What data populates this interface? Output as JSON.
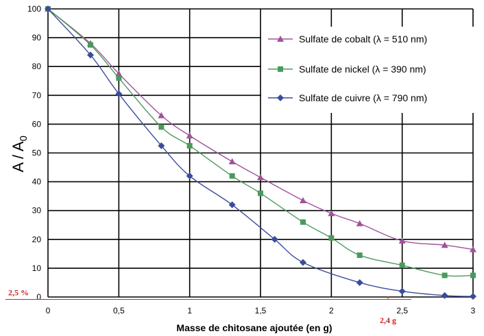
{
  "chart_data": {
    "type": "line",
    "title": "",
    "xlabel": "Masse de chitosane ajoutée (en g)",
    "ylabel": "A / A",
    "ylabel_subscript": "0",
    "xlim": [
      0,
      3
    ],
    "ylim": [
      0,
      100
    ],
    "x_ticks": [
      0,
      0.5,
      1,
      1.5,
      2,
      2.5,
      3
    ],
    "x_tick_labels": [
      "0",
      "0,5",
      "1",
      "1,5",
      "2",
      "2,5",
      "3"
    ],
    "y_ticks": [
      0,
      10,
      20,
      30,
      40,
      50,
      60,
      70,
      80,
      90,
      100
    ],
    "y_tick_labels": [
      "0",
      "10",
      "20",
      "30",
      "40",
      "50",
      "60",
      "70",
      "80",
      "90",
      "100"
    ],
    "grid": true,
    "legend_position": "top-right",
    "series": [
      {
        "name": "Sulfate de cobalt (λ = 510 nm)",
        "color": "#a0529e",
        "marker": "triangle",
        "x": [
          0,
          0.3,
          0.5,
          0.8,
          1.0,
          1.3,
          1.5,
          1.8,
          2.0,
          2.2,
          2.5,
          2.8,
          3.0
        ],
        "y": [
          100,
          88,
          77.5,
          63,
          56,
          47,
          41.5,
          33.5,
          29,
          25.5,
          19.5,
          18,
          16.5
        ]
      },
      {
        "name": "Sulfate de nickel (λ = 390 nm)",
        "color": "#4a9a5c",
        "marker": "square",
        "x": [
          0,
          0.3,
          0.5,
          0.8,
          1.0,
          1.3,
          1.5,
          1.8,
          2.0,
          2.2,
          2.5,
          2.8,
          3.0
        ],
        "y": [
          100,
          87.5,
          76,
          59,
          52.5,
          42,
          36,
          26,
          20.5,
          14.5,
          11,
          7.5,
          7.5
        ]
      },
      {
        "name": "Sulfate de cuivre (λ = 790 nm)",
        "color": "#3a4c9a",
        "marker": "diamond",
        "x": [
          0,
          0.3,
          0.5,
          0.8,
          1.0,
          1.3,
          1.6,
          1.8,
          2.2,
          2.5,
          2.8,
          3.0
        ],
        "y": [
          100,
          84,
          70.5,
          52.5,
          42,
          32,
          20,
          12,
          5,
          2,
          0.5,
          0.2
        ]
      }
    ],
    "annotations": {
      "color": "#cc2222",
      "hline_y": 2.5,
      "hline_label": "2,5 %",
      "vline_x": 2.4,
      "vline_label": "2,4 g"
    }
  }
}
